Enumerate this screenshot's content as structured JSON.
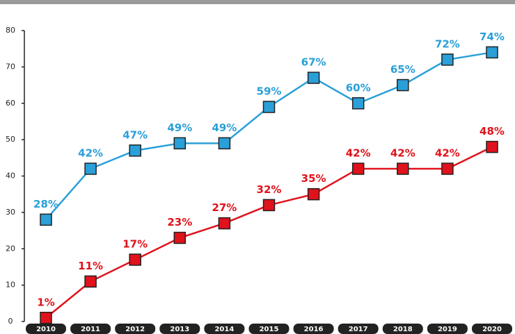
{
  "chart_data": {
    "type": "line",
    "categories": [
      "2010",
      "2011",
      "2012",
      "2013",
      "2014",
      "2015",
      "2016",
      "2017",
      "2018",
      "2019",
      "2020"
    ],
    "series": [
      {
        "color": "#2a9fd8",
        "values": [
          28,
          42,
          47,
          49,
          49,
          59,
          67,
          60,
          65,
          72,
          74
        ],
        "value_labels": [
          "28%",
          "42%",
          "47%",
          "49%",
          "49%",
          "59%",
          "67%",
          "60%",
          "65%",
          "72%",
          "74%"
        ]
      },
      {
        "color": "#e0121b",
        "values": [
          1,
          11,
          17,
          23,
          27,
          32,
          35,
          42,
          42,
          42,
          48
        ],
        "value_labels": [
          "1%",
          "11%",
          "17%",
          "23%",
          "27%",
          "32%",
          "35%",
          "42%",
          "42%",
          "42%",
          "48%"
        ]
      }
    ],
    "ylim": [
      0,
      80
    ],
    "yticks": [
      0,
      10,
      20,
      30,
      40,
      50,
      60,
      70,
      80
    ]
  }
}
